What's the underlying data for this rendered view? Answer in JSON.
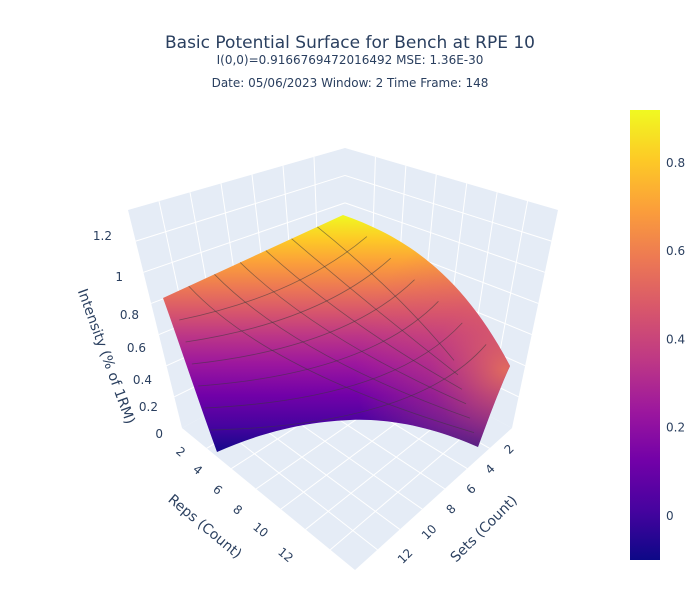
{
  "chart_data": {
    "type": "surface",
    "title": "Basic Potential Surface for Bench at RPE 10",
    "subtitle_1": "I(0,0)=0.9166769472016492  MSE: 1.36E-30",
    "subtitle_2": "Date: 05/06/2023  Window: 2  Time Frame: 148",
    "x_axis": {
      "label": "Sets (Count)",
      "ticks": [
        "2",
        "4",
        "6",
        "8",
        "10",
        "12"
      ]
    },
    "y_axis": {
      "label": "Reps (Count)",
      "ticks": [
        "2",
        "4",
        "6",
        "8",
        "10",
        "12"
      ]
    },
    "z_axis": {
      "label": "Intensity (% of 1RM)",
      "ticks": [
        "0",
        "0.2",
        "0.4",
        "0.6",
        "0.8",
        "1",
        "1.2"
      ],
      "range": [
        0,
        1.3
      ]
    },
    "colorbar": {
      "ticks": [
        "0",
        "0.2",
        "0.4",
        "0.6",
        "0.8"
      ],
      "range": [
        -0.1,
        0.92
      ],
      "colorscale": "plasma"
    },
    "corner_values": {
      "sets_1_reps_1": 0.92,
      "sets_13_reps_1": 0.88,
      "sets_1_reps_13": 0.52,
      "sets_13_reps_13": -0.08
    },
    "grid": true
  }
}
